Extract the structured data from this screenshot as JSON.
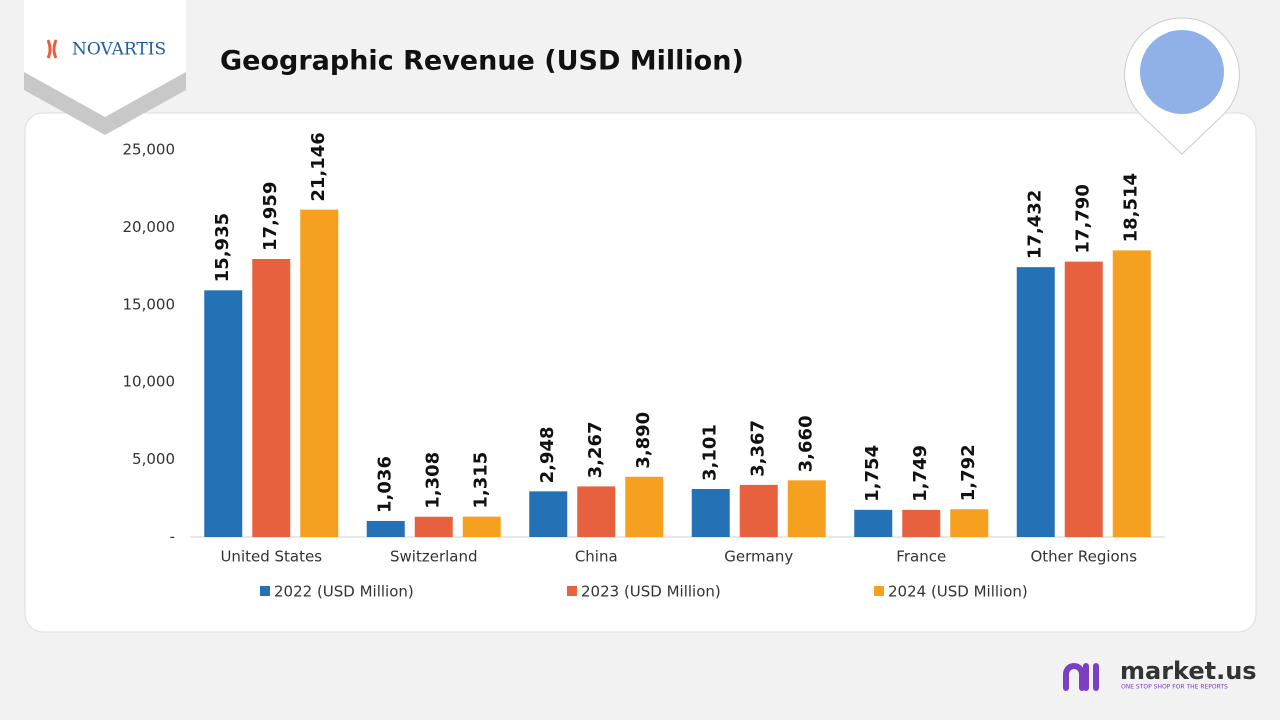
{
  "logo": "NOVARTIS",
  "brand": {
    "name": "market.us",
    "tagline": "ONE STOP SHOP FOR THE REPORTS"
  },
  "chart_data": {
    "type": "bar",
    "title": "Geographic Revenue (USD Million)",
    "categories": [
      "United States",
      "Switzerland",
      "China",
      "Germany",
      "France",
      "Other Regions"
    ],
    "series": [
      {
        "name": "2022 (USD Million)",
        "color": "#2471b5",
        "values": [
          15935,
          1036,
          2948,
          3101,
          1754,
          17432
        ],
        "value_labels": [
          "15,935",
          "1,036",
          "2,948",
          "3,101",
          "1,754",
          "17,432"
        ]
      },
      {
        "name": "2023 (USD Million)",
        "color": "#e8613f",
        "values": [
          17959,
          1308,
          3267,
          3367,
          1749,
          17790
        ],
        "value_labels": [
          "17,959",
          "1,308",
          "3,267",
          "3,367",
          "1,749",
          "17,790"
        ]
      },
      {
        "name": "2024 (USD Million)",
        "color": "#f6a020",
        "values": [
          21146,
          1315,
          3890,
          3660,
          1792,
          18514
        ],
        "value_labels": [
          "21,146",
          "1,315",
          "3,890",
          "3,660",
          "1,792",
          "18,514"
        ]
      }
    ],
    "ylim": [
      0,
      25000
    ],
    "yticks": [
      {
        "value": 0,
        "label": "-"
      },
      {
        "value": 5000,
        "label": "5,000"
      },
      {
        "value": 10000,
        "label": "10,000"
      },
      {
        "value": 15000,
        "label": "15,000"
      },
      {
        "value": 20000,
        "label": "20,000"
      },
      {
        "value": 25000,
        "label": "25,000"
      }
    ],
    "grid": false,
    "legend": "bottom"
  }
}
